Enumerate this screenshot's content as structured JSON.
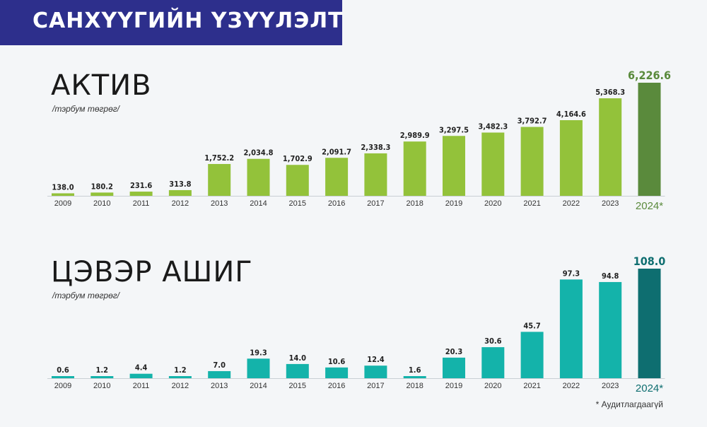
{
  "header": {
    "title": "САНХҮҮГИЙН ҮЗҮҮЛЭЛТ"
  },
  "chart_data": [
    {
      "type": "bar",
      "title": "АКТИВ",
      "unit": "/тэрбум төгрөг/",
      "categories": [
        "2009",
        "2010",
        "2011",
        "2012",
        "2013",
        "2014",
        "2015",
        "2016",
        "2017",
        "2018",
        "2019",
        "2020",
        "2021",
        "2022",
        "2023",
        "2024*"
      ],
      "values": [
        138.0,
        180.2,
        231.6,
        313.8,
        1752.2,
        2034.8,
        1702.9,
        2091.7,
        2338.3,
        2989.9,
        3297.5,
        3482.3,
        3792.7,
        4164.6,
        5368.3,
        6226.6
      ],
      "labels": [
        "138.0",
        "180.2",
        "231.6",
        "313.8",
        "1,752.2",
        "2,034.8",
        "1,702.9",
        "2,091.7",
        "2,338.3",
        "2,989.9",
        "3,297.5",
        "3,482.3",
        "3,792.7",
        "4,164.6",
        "5,368.3",
        "6,226.6"
      ],
      "ylim": [
        0,
        6226.6
      ],
      "colors": {
        "bar": "#93c23a",
        "highlight": "#5a8a3c"
      }
    },
    {
      "type": "bar",
      "title": "ЦЭВЭР АШИГ",
      "unit": "/тэрбум төгрөг/",
      "categories": [
        "2009",
        "2010",
        "2011",
        "2012",
        "2013",
        "2014",
        "2015",
        "2016",
        "2017",
        "2018",
        "2019",
        "2020",
        "2021",
        "2022",
        "2023",
        "2024*"
      ],
      "values": [
        0.6,
        1.2,
        4.4,
        1.2,
        7.0,
        19.3,
        14.0,
        10.6,
        12.4,
        1.6,
        20.3,
        30.6,
        45.7,
        97.3,
        94.8,
        108.0
      ],
      "labels": [
        "0.6",
        "1.2",
        "4.4",
        "1.2",
        "7.0",
        "19.3",
        "14.0",
        "10.6",
        "12.4",
        "1.6",
        "20.3",
        "30.6",
        "45.7",
        "97.3",
        "94.8",
        "108.0"
      ],
      "ylim": [
        0,
        108.0
      ],
      "colors": {
        "bar": "#14b3aa",
        "highlight": "#0e6e70"
      }
    }
  ],
  "footnote": "* Аудитлагдаагүй"
}
